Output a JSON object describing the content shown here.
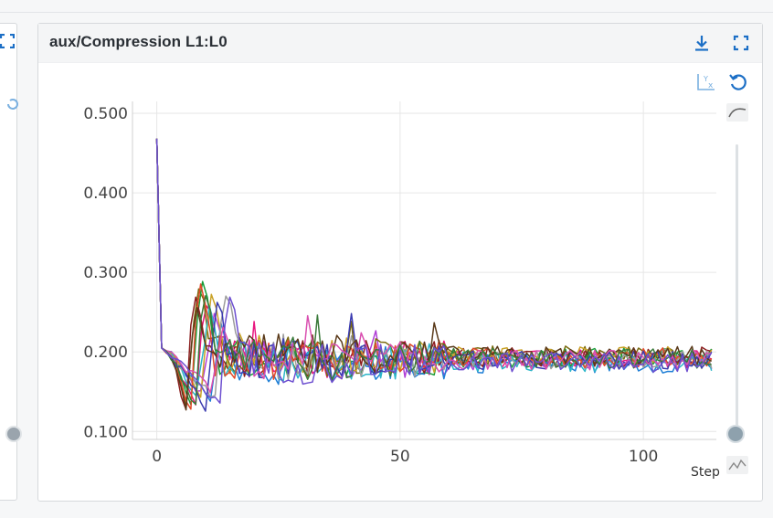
{
  "panel": {
    "title": "aux/Compression L1:L0",
    "icons": [
      "download-icon",
      "expand-icon",
      "reset-axes-icon",
      "refresh-icon",
      "smooth-curve-icon",
      "raw-data-icon"
    ],
    "x_axis_name": "Step"
  },
  "colors": {
    "accent": "#1c6fc6",
    "icon_gray": "#8a95a0",
    "grid": "#e6e6e6"
  },
  "chart_data": {
    "type": "line",
    "title": "aux/Compression L1:L0",
    "xlabel": "Step",
    "ylabel": "",
    "xlim": [
      -5,
      115
    ],
    "ylim": [
      0.09,
      0.515
    ],
    "x_ticks": [
      0,
      50,
      100
    ],
    "x_tick_labels": [
      "0",
      "50",
      "100"
    ],
    "y_ticks": [
      0.1,
      0.2,
      0.3,
      0.4,
      0.5
    ],
    "y_tick_labels": [
      "0.100",
      "0.200",
      "0.300",
      "0.400",
      "0.500"
    ],
    "grid": true,
    "legend": "none",
    "x_range": [
      0,
      114
    ],
    "start_point": {
      "x": 0,
      "y": 0.468
    },
    "series": [
      {
        "color": "#b03fd6",
        "dip_step": 9.8,
        "dip_min": 0.14,
        "peak": 0.245,
        "values_sample": "noisy around 0.190"
      },
      {
        "color": "#e8177f",
        "dip_step": 8.2,
        "dip_min": 0.135,
        "peak": 0.26,
        "values_sample": "noisy around 0.192"
      },
      {
        "color": "#7a6a10",
        "dip_step": 6.6,
        "dip_min": 0.118,
        "peak": 0.28,
        "values_sample": "noisy around 0.195"
      },
      {
        "color": "#1a9e3a",
        "dip_step": 7.4,
        "dip_min": 0.13,
        "peak": 0.29,
        "values_sample": "noisy around 0.193"
      },
      {
        "color": "#1f7fd6",
        "dip_step": 11.2,
        "dip_min": 0.138,
        "peak": 0.24,
        "values_sample": "noisy around 0.186"
      },
      {
        "color": "#8b1f1f",
        "dip_step": 6.0,
        "dip_min": 0.122,
        "peak": 0.265,
        "values_sample": "noisy around 0.194"
      },
      {
        "color": "#c9a227",
        "dip_step": 9.2,
        "dip_min": 0.145,
        "peak": 0.268,
        "values_sample": "noisy around 0.196"
      },
      {
        "color": "#2bb6c9",
        "dip_step": 8.8,
        "dip_min": 0.135,
        "peak": 0.255,
        "values_sample": "noisy around 0.188"
      },
      {
        "color": "#9c9c9c",
        "dip_step": 12.2,
        "dip_min": 0.14,
        "peak": 0.275,
        "values_sample": "noisy around 0.191"
      },
      {
        "color": "#e24a2a",
        "dip_step": 7.0,
        "dip_min": 0.125,
        "peak": 0.285,
        "values_sample": "noisy around 0.193"
      },
      {
        "color": "#3b3bb0",
        "dip_step": 10.4,
        "dip_min": 0.128,
        "peak": 0.26,
        "values_sample": "noisy around 0.189"
      },
      {
        "color": "#5a3a1a",
        "dip_step": 6.3,
        "dip_min": 0.12,
        "peak": 0.255,
        "values_sample": "noisy around 0.195"
      },
      {
        "color": "#d94fb0",
        "dip_step": 11.6,
        "dip_min": 0.15,
        "peak": 0.235,
        "values_sample": "noisy around 0.19"
      },
      {
        "color": "#3a7a3a",
        "dip_step": 8.0,
        "dip_min": 0.132,
        "peak": 0.27,
        "values_sample": "noisy around 0.192"
      },
      {
        "color": "#6d4fd0",
        "dip_step": 13.0,
        "dip_min": 0.135,
        "peak": 0.27,
        "values_sample": "noisy around 0.187"
      }
    ]
  }
}
